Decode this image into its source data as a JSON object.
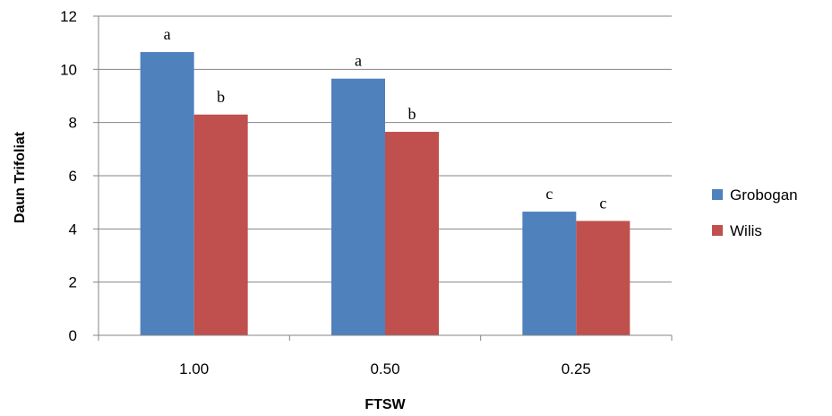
{
  "chart_data": {
    "type": "bar",
    "categories": [
      "1.00",
      "0.50",
      "0.25"
    ],
    "series": [
      {
        "name": "Grobogan",
        "color": "#4F81BD",
        "values": [
          10.65,
          9.65,
          4.65
        ],
        "labels": [
          "a",
          "a",
          "c"
        ]
      },
      {
        "name": "Wilis",
        "color": "#C0504D",
        "values": [
          8.3,
          7.65,
          4.3
        ],
        "labels": [
          "b",
          "b",
          "c"
        ]
      }
    ],
    "xlabel": "FTSW",
    "ylabel": "Daun Trifoliat",
    "ylim": [
      0,
      12
    ],
    "yticks": [
      "0",
      "2",
      "4",
      "6",
      "8",
      "10",
      "12"
    ],
    "grid": true,
    "legend_position": "right"
  }
}
